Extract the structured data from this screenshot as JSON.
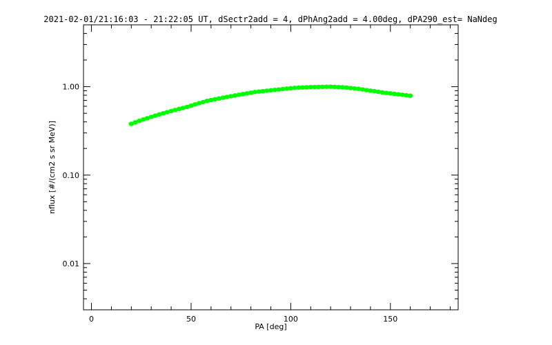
{
  "chart_data": {
    "type": "scatter",
    "title": "2021-02-01/21:16:03 - 21:22:05 UT, dSectr2add = 4, dPhAng2add = 4.00deg, dPA290_est=   NaNdeg",
    "xlabel": "PA [deg]",
    "ylabel": "nflux [#/(cm2 s sr MeV)]",
    "xlim": [
      -4,
      184
    ],
    "ylim": [
      0.003,
      5
    ],
    "yscale": "log",
    "xticks": [
      0,
      50,
      100,
      150
    ],
    "xtick_labels": [
      "0",
      "50",
      "100",
      "150"
    ],
    "yticks": [
      0.01,
      0.1,
      1.0
    ],
    "ytick_labels": [
      "0.01",
      "0.10",
      "1.00"
    ],
    "grid": false,
    "legend": "none",
    "series": [
      {
        "color": "#00ff00",
        "x": [
          20,
          22,
          24,
          26,
          28,
          30,
          32,
          34,
          36,
          38,
          40,
          42,
          44,
          46,
          48,
          50,
          52,
          54,
          56,
          58,
          60,
          62,
          64,
          66,
          68,
          70,
          72,
          74,
          76,
          78,
          80,
          82,
          84,
          86,
          88,
          90,
          92,
          94,
          96,
          98,
          100,
          102,
          104,
          106,
          108,
          110,
          112,
          114,
          116,
          118,
          120,
          122,
          124,
          126,
          128,
          130,
          132,
          134,
          136,
          138,
          140,
          142,
          144,
          146,
          148,
          150,
          152,
          154,
          156,
          158,
          160
        ],
        "y": [
          0.38,
          0.395,
          0.41,
          0.425,
          0.44,
          0.455,
          0.47,
          0.485,
          0.5,
          0.515,
          0.53,
          0.545,
          0.56,
          0.575,
          0.59,
          0.61,
          0.63,
          0.65,
          0.67,
          0.69,
          0.705,
          0.72,
          0.735,
          0.75,
          0.765,
          0.78,
          0.795,
          0.81,
          0.825,
          0.84,
          0.855,
          0.87,
          0.88,
          0.89,
          0.9,
          0.91,
          0.92,
          0.93,
          0.94,
          0.95,
          0.96,
          0.97,
          0.975,
          0.98,
          0.985,
          0.99,
          0.992,
          0.994,
          0.996,
          0.998,
          1.0,
          0.995,
          0.99,
          0.985,
          0.975,
          0.965,
          0.955,
          0.945,
          0.93,
          0.915,
          0.9,
          0.89,
          0.875,
          0.86,
          0.85,
          0.84,
          0.83,
          0.82,
          0.81,
          0.8,
          0.79
        ]
      }
    ]
  }
}
